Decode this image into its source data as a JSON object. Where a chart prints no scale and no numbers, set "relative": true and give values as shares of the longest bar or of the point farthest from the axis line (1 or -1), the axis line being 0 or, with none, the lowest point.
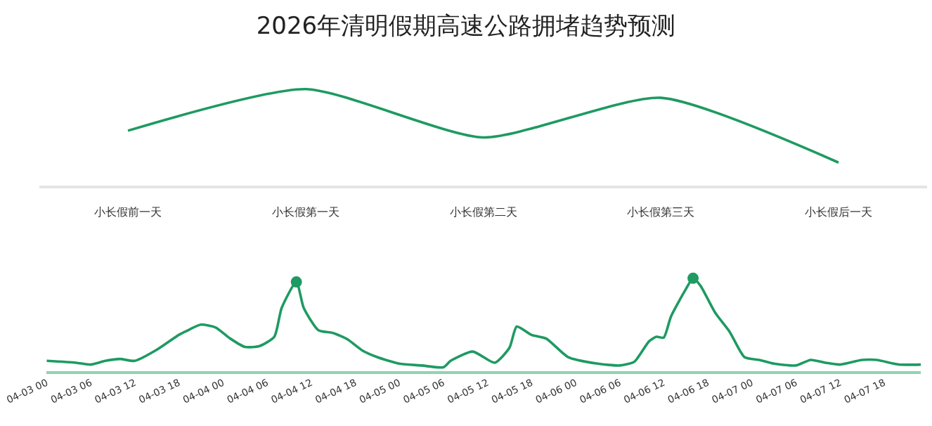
{
  "chart_data": [
    {
      "type": "line",
      "title": "2026年清明假期高速公路拥堵趋势预测",
      "relative": true,
      "marker": "none",
      "categories": [
        "小长假前一天",
        "小长假第一天",
        "小长假第二天",
        "小长假第三天",
        "小长假后一天"
      ],
      "series": [
        {
          "color": "#1e9a62",
          "values": [
            0.57,
            1,
            0.5,
            0.91,
            0.24
          ]
        }
      ]
    },
    {
      "type": "line",
      "relative": true,
      "marker": "none",
      "xlim": [
        "2026-04-03T00:00",
        "2026-04-07T23:00"
      ],
      "xticks": [
        {
          "value": "2026-04-03T00:00",
          "label": "04-03 00"
        },
        {
          "value": "2026-04-03T06:00",
          "label": "04-03 06"
        },
        {
          "value": "2026-04-03T12:00",
          "label": "04-03 12"
        },
        {
          "value": "2026-04-03T18:00",
          "label": "04-03 18"
        },
        {
          "value": "2026-04-04T00:00",
          "label": "04-04 00"
        },
        {
          "value": "2026-04-04T06:00",
          "label": "04-04 06"
        },
        {
          "value": "2026-04-04T12:00",
          "label": "04-04 12"
        },
        {
          "value": "2026-04-04T18:00",
          "label": "04-04 18"
        },
        {
          "value": "2026-04-05T00:00",
          "label": "04-05 00"
        },
        {
          "value": "2026-04-05T06:00",
          "label": "04-05 06"
        },
        {
          "value": "2026-04-05T12:00",
          "label": "04-05 12"
        },
        {
          "value": "2026-04-05T18:00",
          "label": "04-05 18"
        },
        {
          "value": "2026-04-06T00:00",
          "label": "04-06 00"
        },
        {
          "value": "2026-04-06T06:00",
          "label": "04-06 06"
        },
        {
          "value": "2026-04-06T12:00",
          "label": "04-06 12"
        },
        {
          "value": "2026-04-06T18:00",
          "label": "04-06 18"
        },
        {
          "value": "2026-04-07T00:00",
          "label": "04-07 00"
        },
        {
          "value": "2026-04-07T06:00",
          "label": "04-07 06"
        },
        {
          "value": "2026-04-07T12:00",
          "label": "04-07 12"
        },
        {
          "value": "2026-04-07T18:00",
          "label": "04-07 18"
        }
      ],
      "series": [
        {
          "color": "#1e9a62",
          "x": [
            "2026-04-03T00:00",
            "2026-04-03T04:00",
            "2026-04-03T06:00",
            "2026-04-03T08:00",
            "2026-04-03T10:00",
            "2026-04-03T12:00",
            "2026-04-03T15:00",
            "2026-04-03T18:00",
            "2026-04-03T19:00",
            "2026-04-03T21:00",
            "2026-04-03T23:00",
            "2026-04-04T01:00",
            "2026-04-04T03:00",
            "2026-04-04T05:00",
            "2026-04-04T07:00",
            "2026-04-04T08:00",
            "2026-04-04T10:00",
            "2026-04-04T11:00",
            "2026-04-04T13:00",
            "2026-04-04T15:00",
            "2026-04-04T17:00",
            "2026-04-04T19:00",
            "2026-04-04T21:00",
            "2026-04-05T00:00",
            "2026-04-05T03:00",
            "2026-04-05T06:00",
            "2026-04-05T07:00",
            "2026-04-05T10:00",
            "2026-04-05T13:00",
            "2026-04-05T15:00",
            "2026-04-05T16:00",
            "2026-04-05T18:00",
            "2026-04-05T20:00",
            "2026-04-05T23:00",
            "2026-04-06T03:00",
            "2026-04-06T06:00",
            "2026-04-06T08:00",
            "2026-04-06T10:00",
            "2026-04-06T11:00",
            "2026-04-06T12:00",
            "2026-04-06T13:00",
            "2026-04-06T15:00",
            "2026-04-06T16:00",
            "2026-04-06T17:00",
            "2026-04-06T19:00",
            "2026-04-06T21:00",
            "2026-04-06T23:00",
            "2026-04-07T01:00",
            "2026-04-07T03:00",
            "2026-04-07T06:00",
            "2026-04-07T08:00",
            "2026-04-07T10:00",
            "2026-04-07T12:00",
            "2026-04-07T15:00",
            "2026-04-07T17:00",
            "2026-04-07T20:00",
            "2026-04-07T23:00"
          ],
          "values": [
            0.11,
            0.09,
            0.07,
            0.11,
            0.13,
            0.11,
            0.23,
            0.39,
            0.43,
            0.5,
            0.47,
            0.35,
            0.26,
            0.27,
            0.37,
            0.68,
            0.96,
            0.68,
            0.44,
            0.41,
            0.34,
            0.22,
            0.15,
            0.08,
            0.06,
            0.04,
            0.11,
            0.21,
            0.09,
            0.25,
            0.48,
            0.39,
            0.35,
            0.15,
            0.08,
            0.06,
            0.1,
            0.32,
            0.37,
            0.36,
            0.59,
            0.88,
            1,
            0.92,
            0.63,
            0.42,
            0.15,
            0.12,
            0.08,
            0.06,
            0.12,
            0.09,
            0.07,
            0.12,
            0.12,
            0.07,
            0.07
          ]
        },
        {
          "type": "scatter",
          "marker": "circle",
          "color": "#1e9a62",
          "x": [
            "2026-04-04T10:00",
            "2026-04-06T16:00"
          ],
          "values": [
            0.96,
            1
          ]
        }
      ]
    }
  ]
}
